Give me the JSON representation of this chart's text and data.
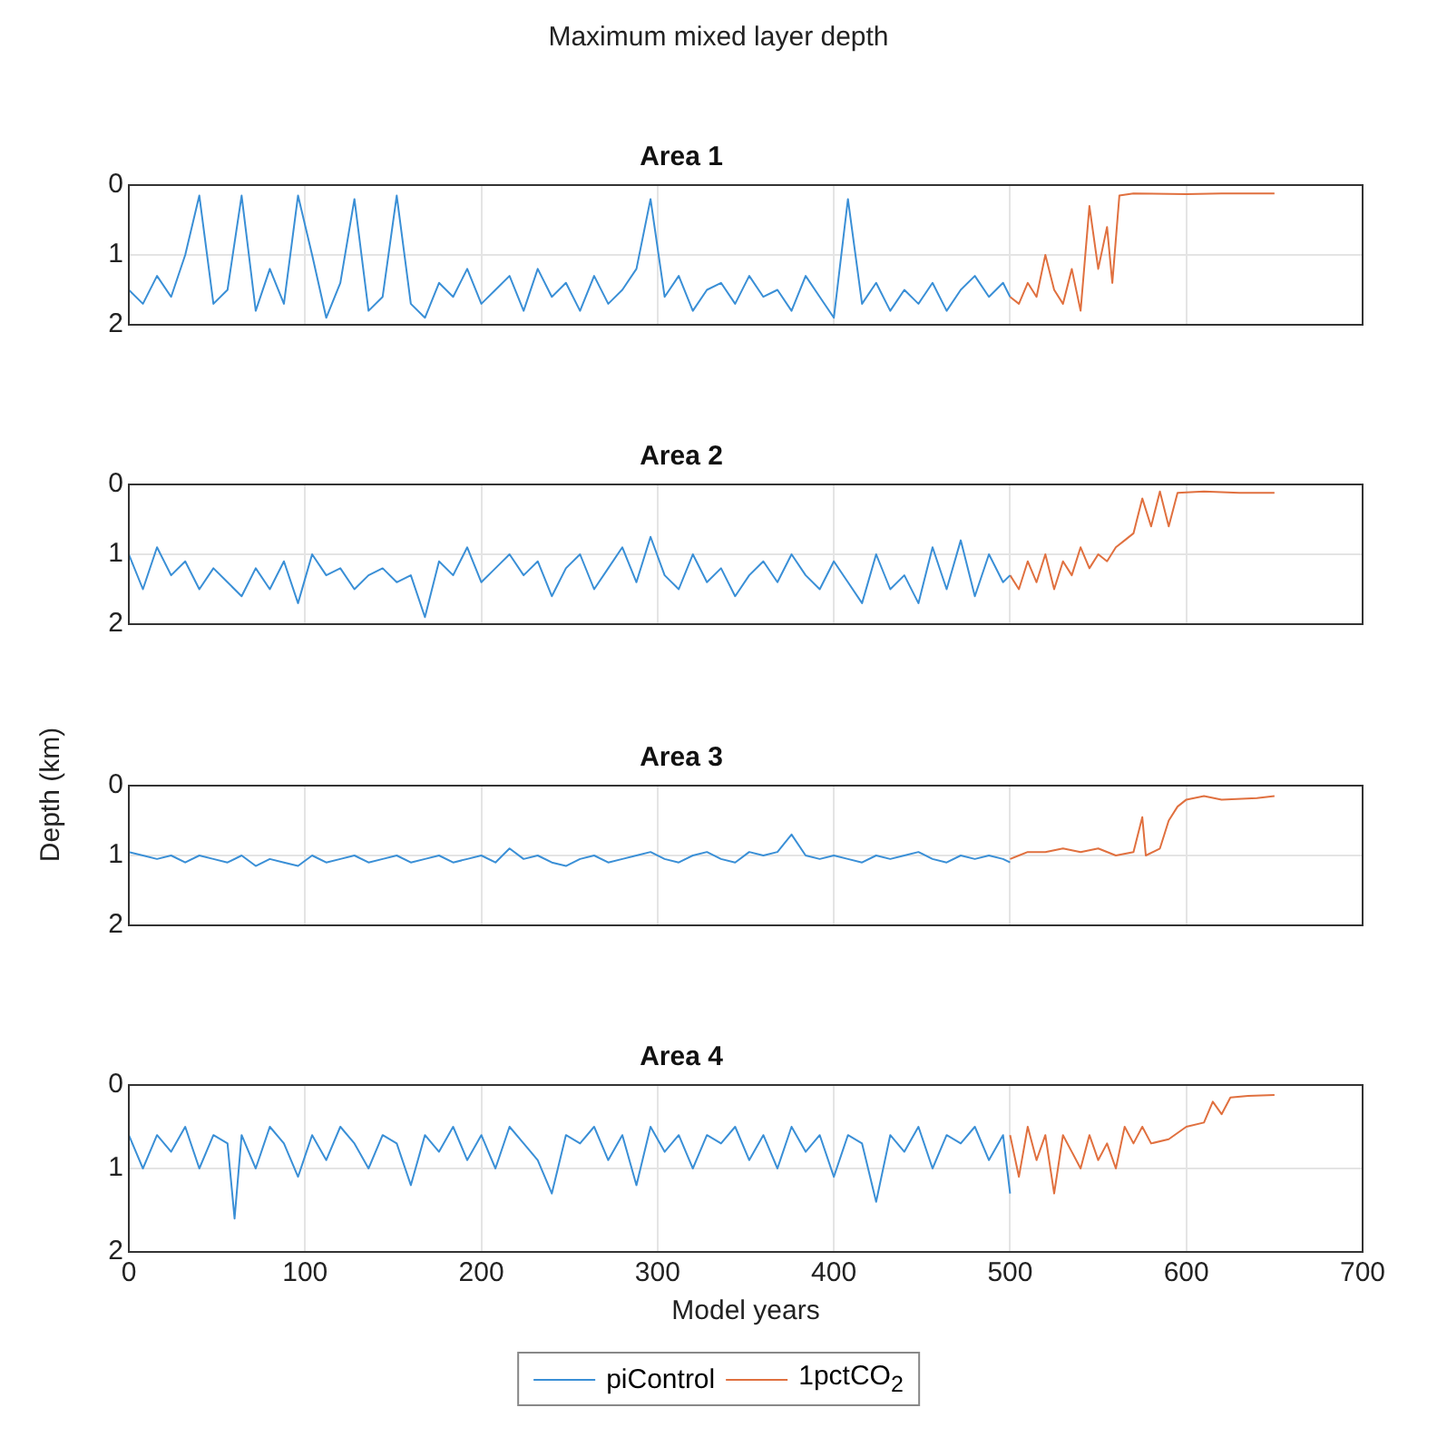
{
  "chart_data": [
    {
      "type": "line",
      "title": "Area 1",
      "annotations": [
        "Maximum mixed layer depth"
      ],
      "xlim": [
        0,
        700
      ],
      "xticks": [
        0,
        100,
        200,
        300,
        400,
        500,
        600,
        700
      ],
      "ylim": [
        2,
        0
      ],
      "yticks": [
        0,
        1,
        2
      ],
      "grid": true,
      "legend": false,
      "tick_labels": "y",
      "series": [
        {
          "color": "#3a8fd6",
          "x": [
            0,
            8,
            16,
            24,
            32,
            40,
            48,
            56,
            64,
            72,
            80,
            88,
            96,
            104,
            112,
            120,
            128,
            136,
            144,
            152,
            160,
            168,
            176,
            184,
            192,
            200,
            208,
            216,
            224,
            232,
            240,
            248,
            256,
            264,
            272,
            280,
            288,
            296,
            304,
            312,
            320,
            328,
            336,
            344,
            352,
            360,
            368,
            376,
            384,
            392,
            400,
            408,
            416,
            424,
            432,
            440,
            448,
            456,
            464,
            472,
            480,
            488,
            496,
            500
          ],
          "values": [
            1.5,
            1.7,
            1.3,
            1.6,
            1.0,
            0.15,
            1.7,
            1.5,
            0.15,
            1.8,
            1.2,
            1.7,
            0.15,
            1.0,
            1.9,
            1.4,
            0.2,
            1.8,
            1.6,
            0.15,
            1.7,
            1.9,
            1.4,
            1.6,
            1.2,
            1.7,
            1.5,
            1.3,
            1.8,
            1.2,
            1.6,
            1.4,
            1.8,
            1.3,
            1.7,
            1.5,
            1.2,
            0.2,
            1.6,
            1.3,
            1.8,
            1.5,
            1.4,
            1.7,
            1.3,
            1.6,
            1.5,
            1.8,
            1.3,
            1.6,
            1.9,
            0.2,
            1.7,
            1.4,
            1.8,
            1.5,
            1.7,
            1.4,
            1.8,
            1.5,
            1.3,
            1.6,
            1.4,
            1.6
          ]
        },
        {
          "color": "#e0703f",
          "x": [
            500,
            505,
            510,
            515,
            520,
            525,
            530,
            535,
            540,
            545,
            550,
            555,
            558,
            562,
            570,
            600,
            620,
            650
          ],
          "values": [
            1.6,
            1.7,
            1.4,
            1.6,
            1.0,
            1.5,
            1.7,
            1.2,
            1.8,
            0.3,
            1.2,
            0.6,
            1.4,
            0.15,
            0.12,
            0.13,
            0.12,
            0.12
          ]
        }
      ]
    },
    {
      "type": "line",
      "title": "Area 2",
      "ylabel": "Depth (km)",
      "xlim": [
        0,
        700
      ],
      "xticks": [
        0,
        100,
        200,
        300,
        400,
        500,
        600,
        700
      ],
      "ylim": [
        2,
        0
      ],
      "yticks": [
        0,
        1,
        2
      ],
      "grid": true,
      "legend": false,
      "tick_labels": "y",
      "series": [
        {
          "color": "#3a8fd6",
          "x": [
            0,
            8,
            16,
            24,
            32,
            40,
            48,
            56,
            64,
            72,
            80,
            88,
            96,
            104,
            112,
            120,
            128,
            136,
            144,
            152,
            160,
            168,
            176,
            184,
            192,
            200,
            208,
            216,
            224,
            232,
            240,
            248,
            256,
            264,
            272,
            280,
            288,
            296,
            304,
            312,
            320,
            328,
            336,
            344,
            352,
            360,
            368,
            376,
            384,
            392,
            400,
            408,
            416,
            424,
            432,
            440,
            448,
            456,
            464,
            472,
            480,
            488,
            496,
            500
          ],
          "values": [
            1.0,
            1.5,
            0.9,
            1.3,
            1.1,
            1.5,
            1.2,
            1.4,
            1.6,
            1.2,
            1.5,
            1.1,
            1.7,
            1.0,
            1.3,
            1.2,
            1.5,
            1.3,
            1.2,
            1.4,
            1.3,
            1.9,
            1.1,
            1.3,
            0.9,
            1.4,
            1.2,
            1.0,
            1.3,
            1.1,
            1.6,
            1.2,
            1.0,
            1.5,
            1.2,
            0.9,
            1.4,
            0.75,
            1.3,
            1.5,
            1.0,
            1.4,
            1.2,
            1.6,
            1.3,
            1.1,
            1.4,
            1.0,
            1.3,
            1.5,
            1.1,
            1.4,
            1.7,
            1.0,
            1.5,
            1.3,
            1.7,
            0.9,
            1.5,
            0.8,
            1.6,
            1.0,
            1.4,
            1.3
          ]
        },
        {
          "color": "#e0703f",
          "x": [
            500,
            505,
            510,
            515,
            520,
            525,
            530,
            535,
            540,
            545,
            550,
            555,
            560,
            565,
            570,
            575,
            580,
            585,
            590,
            595,
            610,
            630,
            650
          ],
          "values": [
            1.3,
            1.5,
            1.1,
            1.4,
            1.0,
            1.5,
            1.1,
            1.3,
            0.9,
            1.2,
            1.0,
            1.1,
            0.9,
            0.8,
            0.7,
            0.2,
            0.6,
            0.1,
            0.6,
            0.12,
            0.1,
            0.12,
            0.12
          ]
        }
      ]
    },
    {
      "type": "line",
      "title": "Area 3",
      "xlim": [
        0,
        700
      ],
      "xticks": [
        0,
        100,
        200,
        300,
        400,
        500,
        600,
        700
      ],
      "ylim": [
        2,
        0
      ],
      "yticks": [
        0,
        1,
        2
      ],
      "grid": true,
      "legend": false,
      "tick_labels": "y",
      "series": [
        {
          "color": "#3a8fd6",
          "x": [
            0,
            8,
            16,
            24,
            32,
            40,
            48,
            56,
            64,
            72,
            80,
            88,
            96,
            104,
            112,
            120,
            128,
            136,
            144,
            152,
            160,
            168,
            176,
            184,
            192,
            200,
            208,
            216,
            224,
            232,
            240,
            248,
            256,
            264,
            272,
            280,
            288,
            296,
            304,
            312,
            320,
            328,
            336,
            344,
            352,
            360,
            368,
            376,
            384,
            392,
            400,
            408,
            416,
            424,
            432,
            440,
            448,
            456,
            464,
            472,
            480,
            488,
            496,
            500
          ],
          "values": [
            0.95,
            1.0,
            1.05,
            1.0,
            1.1,
            1.0,
            1.05,
            1.1,
            1.0,
            1.15,
            1.05,
            1.1,
            1.15,
            1.0,
            1.1,
            1.05,
            1.0,
            1.1,
            1.05,
            1.0,
            1.1,
            1.05,
            1.0,
            1.1,
            1.05,
            1.0,
            1.1,
            0.9,
            1.05,
            1.0,
            1.1,
            1.15,
            1.05,
            1.0,
            1.1,
            1.05,
            1.0,
            0.95,
            1.05,
            1.1,
            1.0,
            0.95,
            1.05,
            1.1,
            0.95,
            1.0,
            0.95,
            0.7,
            1.0,
            1.05,
            1.0,
            1.05,
            1.1,
            1.0,
            1.05,
            1.0,
            0.95,
            1.05,
            1.1,
            1.0,
            1.05,
            1.0,
            1.05,
            1.1
          ]
        },
        {
          "color": "#e0703f",
          "x": [
            500,
            505,
            510,
            520,
            530,
            540,
            550,
            560,
            570,
            575,
            577,
            585,
            590,
            595,
            600,
            610,
            620,
            640,
            650
          ],
          "values": [
            1.05,
            1.0,
            0.95,
            0.95,
            0.9,
            0.95,
            0.9,
            1.0,
            0.95,
            0.45,
            1.0,
            0.9,
            0.5,
            0.3,
            0.2,
            0.15,
            0.2,
            0.18,
            0.15
          ]
        }
      ]
    },
    {
      "type": "line",
      "title": "Area 4",
      "xlabel": "Model years",
      "xlim": [
        0,
        700
      ],
      "xticks": [
        0,
        100,
        200,
        300,
        400,
        500,
        600,
        700
      ],
      "ylim": [
        2,
        0
      ],
      "yticks": [
        0,
        1,
        2
      ],
      "grid": true,
      "legend": "bottom",
      "series": [
        {
          "name": "piControl",
          "color": "#3a8fd6",
          "x": [
            0,
            8,
            16,
            24,
            32,
            40,
            48,
            56,
            60,
            64,
            72,
            80,
            88,
            96,
            104,
            112,
            120,
            128,
            136,
            144,
            152,
            160,
            168,
            176,
            184,
            192,
            200,
            208,
            216,
            224,
            232,
            240,
            248,
            256,
            264,
            272,
            280,
            288,
            296,
            304,
            312,
            320,
            328,
            336,
            344,
            352,
            360,
            368,
            376,
            384,
            392,
            400,
            408,
            416,
            424,
            432,
            440,
            448,
            456,
            464,
            472,
            480,
            488,
            496,
            500
          ],
          "values": [
            0.6,
            1.0,
            0.6,
            0.8,
            0.5,
            1.0,
            0.6,
            0.7,
            1.6,
            0.6,
            1.0,
            0.5,
            0.7,
            1.1,
            0.6,
            0.9,
            0.5,
            0.7,
            1.0,
            0.6,
            0.7,
            1.2,
            0.6,
            0.8,
            0.5,
            0.9,
            0.6,
            1.0,
            0.5,
            0.7,
            0.9,
            1.3,
            0.6,
            0.7,
            0.5,
            0.9,
            0.6,
            1.2,
            0.5,
            0.8,
            0.6,
            1.0,
            0.6,
            0.7,
            0.5,
            0.9,
            0.6,
            1.0,
            0.5,
            0.8,
            0.6,
            1.1,
            0.6,
            0.7,
            1.4,
            0.6,
            0.8,
            0.5,
            1.0,
            0.6,
            0.7,
            0.5,
            0.9,
            0.6,
            1.3
          ]
        },
        {
          "name": "1pctCO$_{2}$",
          "color": "#e0703f",
          "x": [
            500,
            505,
            510,
            515,
            520,
            525,
            530,
            535,
            540,
            545,
            550,
            555,
            560,
            565,
            570,
            575,
            580,
            590,
            600,
            610,
            615,
            620,
            625,
            635,
            650
          ],
          "values": [
            0.6,
            1.1,
            0.5,
            0.9,
            0.6,
            1.3,
            0.6,
            0.8,
            1.0,
            0.6,
            0.9,
            0.7,
            1.0,
            0.5,
            0.7,
            0.5,
            0.7,
            0.65,
            0.5,
            0.45,
            0.2,
            0.35,
            0.15,
            0.13,
            0.12
          ]
        }
      ]
    }
  ]
}
